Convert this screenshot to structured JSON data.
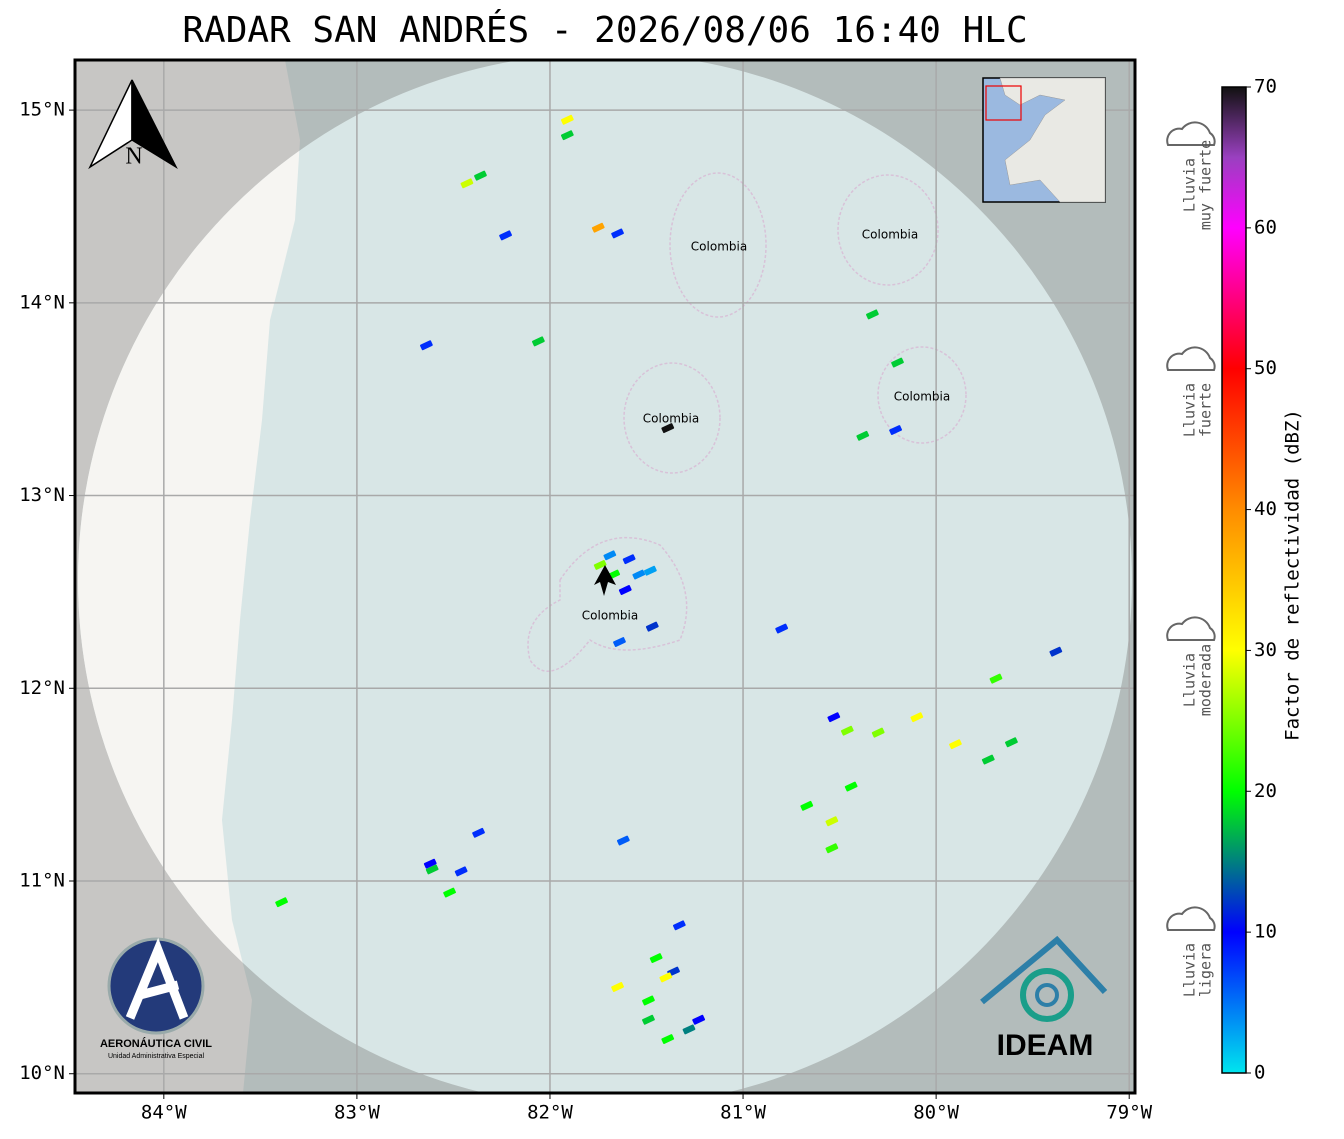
{
  "map": {
    "title": "RADAR SAN ANDRÉS - 2026/08/06 16:40 HLC",
    "xlim": [
      -84.46,
      -78.97
    ],
    "ylim": [
      9.9,
      15.26
    ],
    "xticks": [
      {
        "value": -84,
        "label": "84°W"
      },
      {
        "value": -83,
        "label": "83°W"
      },
      {
        "value": -82,
        "label": "82°W"
      },
      {
        "value": -81,
        "label": "81°W"
      },
      {
        "value": -80,
        "label": "80°W"
      },
      {
        "value": -79,
        "label": "79°W"
      }
    ],
    "yticks": [
      {
        "value": 10,
        "label": "10°N"
      },
      {
        "value": 11,
        "label": "11°N"
      },
      {
        "value": 12,
        "label": "12°N"
      },
      {
        "value": 13,
        "label": "13°N"
      },
      {
        "value": 14,
        "label": "14°N"
      },
      {
        "value": 15,
        "label": "15°N"
      }
    ],
    "grid": true,
    "north_label": "N",
    "region_labels": [
      "Colombia",
      "Colombia",
      "Colombia",
      "Colombia",
      "Colombia"
    ],
    "echoes": [
      {
        "lon": -81.91,
        "lat": 14.95,
        "dbz": 30
      },
      {
        "lon": -81.91,
        "lat": 14.87,
        "dbz": 18
      },
      {
        "lon": -82.43,
        "lat": 14.62,
        "dbz": 28
      },
      {
        "lon": -82.36,
        "lat": 14.66,
        "dbz": 18
      },
      {
        "lon": -82.23,
        "lat": 14.35,
        "dbz": 8
      },
      {
        "lon": -81.75,
        "lat": 14.39,
        "dbz": 38
      },
      {
        "lon": -81.65,
        "lat": 14.36,
        "dbz": 8
      },
      {
        "lon": -82.64,
        "lat": 13.78,
        "dbz": 8
      },
      {
        "lon": -82.06,
        "lat": 13.8,
        "dbz": 18
      },
      {
        "lon": -81.39,
        "lat": 13.35,
        "dbz": 70
      },
      {
        "lon": -80.33,
        "lat": 13.94,
        "dbz": 18
      },
      {
        "lon": -80.2,
        "lat": 13.69,
        "dbz": 18
      },
      {
        "lon": -80.21,
        "lat": 13.34,
        "dbz": 8
      },
      {
        "lon": -80.38,
        "lat": 13.31,
        "dbz": 18
      },
      {
        "lon": -81.69,
        "lat": 12.69,
        "dbz": 4
      },
      {
        "lon": -81.59,
        "lat": 12.67,
        "dbz": 8
      },
      {
        "lon": -81.67,
        "lat": 12.59,
        "dbz": 20
      },
      {
        "lon": -81.54,
        "lat": 12.59,
        "dbz": 4
      },
      {
        "lon": -81.61,
        "lat": 12.51,
        "dbz": 10
      },
      {
        "lon": -81.74,
        "lat": 12.64,
        "dbz": 25
      },
      {
        "lon": -81.48,
        "lat": 12.61,
        "dbz": 3
      },
      {
        "lon": -81.47,
        "lat": 12.32,
        "dbz": 12
      },
      {
        "lon": -81.64,
        "lat": 12.24,
        "dbz": 6
      },
      {
        "lon": -80.8,
        "lat": 12.31,
        "dbz": 8
      },
      {
        "lon": -79.38,
        "lat": 12.19,
        "dbz": 12
      },
      {
        "lon": -79.69,
        "lat": 12.05,
        "dbz": 22
      },
      {
        "lon": -80.1,
        "lat": 11.85,
        "dbz": 30
      },
      {
        "lon": -79.9,
        "lat": 11.71,
        "dbz": 30
      },
      {
        "lon": -79.61,
        "lat": 11.72,
        "dbz": 18
      },
      {
        "lon": -80.3,
        "lat": 11.77,
        "dbz": 25
      },
      {
        "lon": -80.53,
        "lat": 11.85,
        "dbz": 10
      },
      {
        "lon": -80.46,
        "lat": 11.78,
        "dbz": 25
      },
      {
        "lon": -80.44,
        "lat": 11.49,
        "dbz": 20
      },
      {
        "lon": -80.54,
        "lat": 11.31,
        "dbz": 28
      },
      {
        "lon": -80.54,
        "lat": 11.17,
        "dbz": 22
      },
      {
        "lon": -80.67,
        "lat": 11.39,
        "dbz": 20
      },
      {
        "lon": -79.73,
        "lat": 11.63,
        "dbz": 18
      },
      {
        "lon": -82.62,
        "lat": 11.09,
        "dbz": 10
      },
      {
        "lon": -82.61,
        "lat": 11.06,
        "dbz": 18
      },
      {
        "lon": -82.46,
        "lat": 11.05,
        "dbz": 8
      },
      {
        "lon": -82.52,
        "lat": 10.94,
        "dbz": 20
      },
      {
        "lon": -82.37,
        "lat": 11.25,
        "dbz": 8
      },
      {
        "lon": -83.39,
        "lat": 10.89,
        "dbz": 20
      },
      {
        "lon": -81.62,
        "lat": 11.21,
        "dbz": 6
      },
      {
        "lon": -81.33,
        "lat": 10.77,
        "dbz": 8
      },
      {
        "lon": -81.45,
        "lat": 10.6,
        "dbz": 20
      },
      {
        "lon": -81.36,
        "lat": 10.53,
        "dbz": 12
      },
      {
        "lon": -81.4,
        "lat": 10.5,
        "dbz": 30
      },
      {
        "lon": -81.65,
        "lat": 10.45,
        "dbz": 30
      },
      {
        "lon": -81.49,
        "lat": 10.38,
        "dbz": 20
      },
      {
        "lon": -81.49,
        "lat": 10.28,
        "dbz": 18
      },
      {
        "lon": -81.39,
        "lat": 10.18,
        "dbz": 20
      },
      {
        "lon": -81.28,
        "lat": 10.23,
        "dbz": 15
      },
      {
        "lon": -81.23,
        "lat": 10.28,
        "dbz": 10
      }
    ],
    "colorbar": {
      "label": "Factor de reflectividad (dBZ)",
      "lim": [
        0,
        70
      ],
      "ticks": [
        0,
        10,
        20,
        30,
        40,
        50,
        60,
        70
      ],
      "stops": [
        {
          "value": 0,
          "color": "#00e5ee"
        },
        {
          "value": 10,
          "color": "#0000ff"
        },
        {
          "value": 20,
          "color": "#00ff00"
        },
        {
          "value": 30,
          "color": "#ffff00"
        },
        {
          "value": 40,
          "color": "#ff8c00"
        },
        {
          "value": 50,
          "color": "#ff0000"
        },
        {
          "value": 60,
          "color": "#ff00ff"
        },
        {
          "value": 65,
          "color": "#9a40c0"
        },
        {
          "value": 70,
          "color": "#111111"
        }
      ]
    },
    "rain_levels": [
      {
        "lines": [
          "Lluvia",
          "ligera"
        ]
      },
      {
        "lines": [
          "Lluvia",
          "moderada"
        ]
      },
      {
        "lines": [
          "Lluvia",
          "fuerte"
        ]
      },
      {
        "lines": [
          "Lluvia",
          "muy fuerte"
        ]
      }
    ],
    "logos": {
      "left_name": "AERONÁUTICA CIVIL",
      "left_sub": "Unidad Administrativa Especial",
      "right_name": "IDEAM"
    }
  }
}
